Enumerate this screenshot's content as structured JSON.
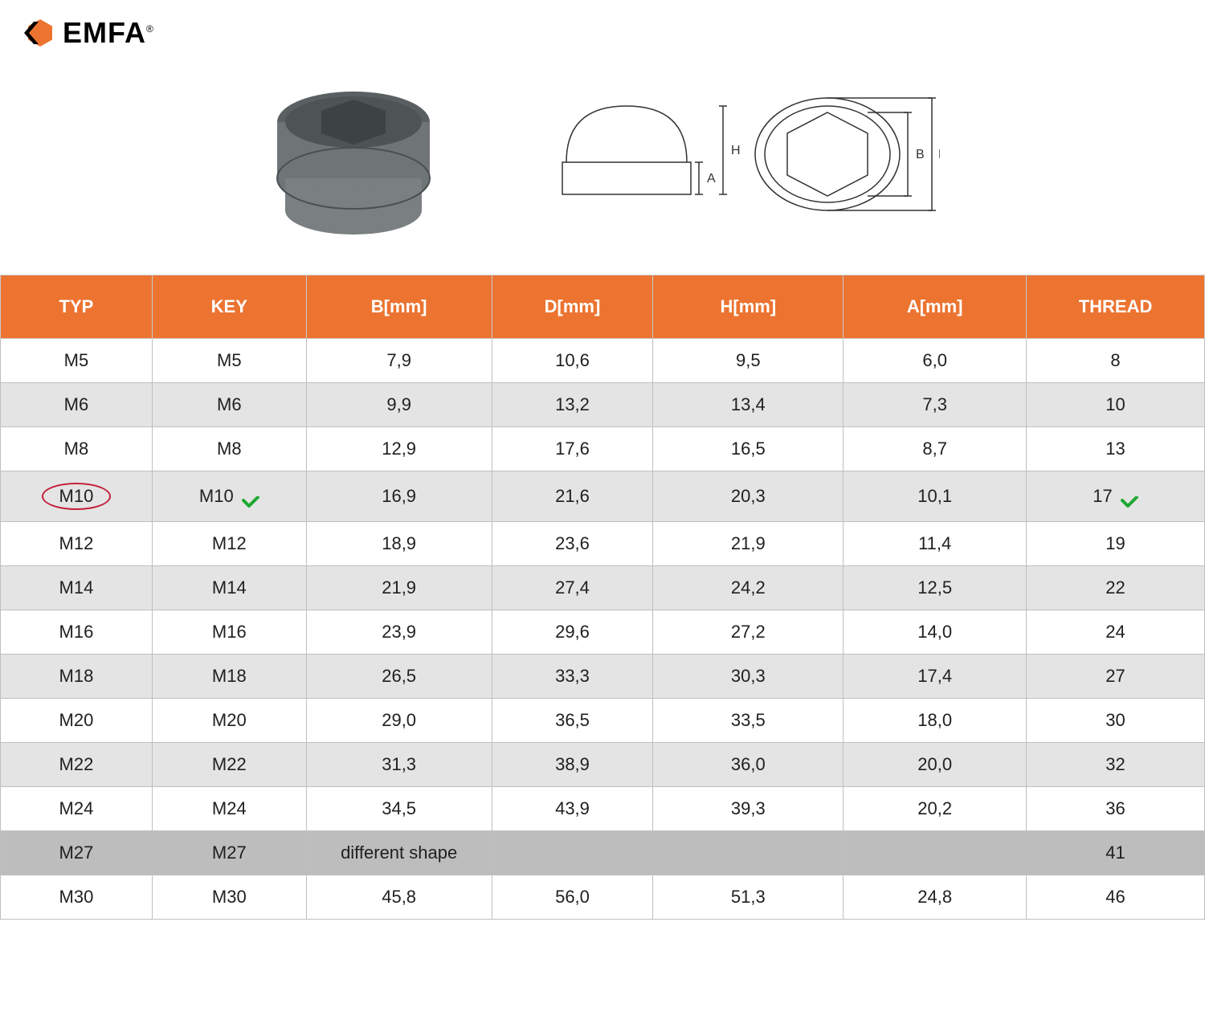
{
  "logo_text": "EMFA",
  "logo_r": "®",
  "colors": {
    "header_bg": "#ec7430",
    "header_fg": "#ffffff",
    "row_odd": "#ffffff",
    "row_even": "#e4e4e4",
    "row_dark": "#bdbdbd",
    "border": "#bfbfbf",
    "text": "#1f1f1f",
    "circle": "#c41e3a",
    "check": "#1fa82f",
    "logo_orange": "#ec7430",
    "logo_black": "#000000",
    "product_gray": "#6f7476",
    "diagram_stroke": "#333333"
  },
  "diagram_labels": {
    "A": "A",
    "H": "H",
    "B": "B",
    "D": "D"
  },
  "table": {
    "columns": [
      "TYP",
      "KEY",
      "B[mm]",
      "D[mm]",
      "H[mm]",
      "A[mm]",
      "THREAD"
    ],
    "column_widths_pct": [
      12.6,
      12.8,
      15.4,
      13.4,
      15.8,
      15.2,
      14.8
    ],
    "header_fontsize": 22,
    "cell_fontsize": 22,
    "rows": [
      {
        "cells": [
          "M5",
          "M5",
          "7,9",
          "10,6",
          "9,5",
          "6,0",
          "8"
        ],
        "shade": "odd"
      },
      {
        "cells": [
          "M6",
          "M6",
          "9,9",
          "13,2",
          "13,4",
          "7,3",
          "10"
        ],
        "shade": "even"
      },
      {
        "cells": [
          "M8",
          "M8",
          "12,9",
          "17,6",
          "16,5",
          "8,7",
          "13"
        ],
        "shade": "odd"
      },
      {
        "cells": [
          "M10",
          "M10",
          "16,9",
          "21,6",
          "20,3",
          "10,1",
          "17"
        ],
        "shade": "even",
        "highlight": true
      },
      {
        "cells": [
          "M12",
          "M12",
          "18,9",
          "23,6",
          "21,9",
          "11,4",
          "19"
        ],
        "shade": "odd"
      },
      {
        "cells": [
          "M14",
          "M14",
          "21,9",
          "27,4",
          "24,2",
          "12,5",
          "22"
        ],
        "shade": "even"
      },
      {
        "cells": [
          "M16",
          "M16",
          "23,9",
          "29,6",
          "27,2",
          "14,0",
          "24"
        ],
        "shade": "odd"
      },
      {
        "cells": [
          "M18",
          "M18",
          "26,5",
          "33,3",
          "30,3",
          "17,4",
          "27"
        ],
        "shade": "even"
      },
      {
        "cells": [
          "M20",
          "M20",
          "29,0",
          "36,5",
          "33,5",
          "18,0",
          "30"
        ],
        "shade": "odd"
      },
      {
        "cells": [
          "M22",
          "M22",
          "31,3",
          "38,9",
          "36,0",
          "20,0",
          "32"
        ],
        "shade": "even"
      },
      {
        "cells": [
          "M24",
          "M24",
          "34,5",
          "43,9",
          "39,3",
          "20,2",
          "36"
        ],
        "shade": "odd"
      },
      {
        "cells": [
          "M27",
          "M27",
          "different shape",
          "",
          "",
          "",
          "41"
        ],
        "shade": "dark"
      },
      {
        "cells": [
          "M30",
          "M30",
          "45,8",
          "56,0",
          "51,3",
          "24,8",
          "46"
        ],
        "shade": "odd"
      }
    ]
  }
}
